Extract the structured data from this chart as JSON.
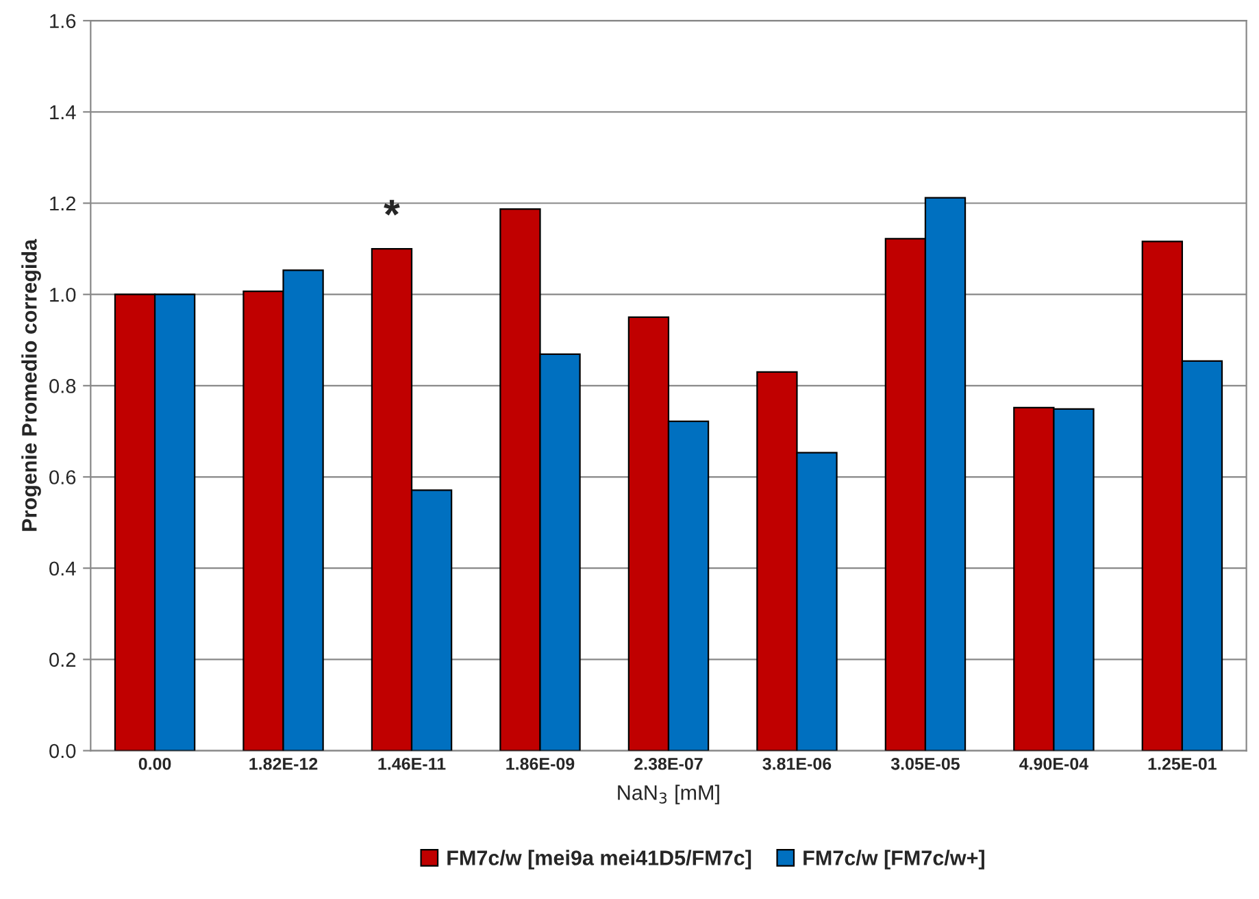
{
  "chart_data": {
    "type": "bar",
    "xlabel": "NaN$_{3}$ [mM]",
    "ylabel": "Progenie Promedio corregida",
    "categories": [
      "0.00",
      "1.82E-12",
      "1.46E-11",
      "1.86E-09",
      "2.38E-07",
      "3.81E-06",
      "3.05E-05",
      "4.90E-04",
      "1.25E-01"
    ],
    "series": [
      {
        "name": "FM7c/w [mei9a mei41D5/FM7c]",
        "color": "#c00000",
        "values": [
          1.0,
          1.007,
          1.1,
          1.187,
          0.95,
          0.83,
          1.122,
          0.752,
          1.116
        ]
      },
      {
        "name": "FM7c/w [FM7c/w+]",
        "color": "#0070c0",
        "values": [
          1.0,
          1.053,
          0.571,
          0.869,
          0.722,
          0.653,
          1.212,
          0.749,
          0.854
        ]
      }
    ],
    "ylim": [
      0,
      1.6
    ],
    "yticks": [
      {
        "value": 0,
        "label": "0.0"
      },
      {
        "value": 0.2,
        "label": "0.2"
      },
      {
        "value": 0.4,
        "label": "0.4"
      },
      {
        "value": 0.6,
        "label": "0.6"
      },
      {
        "value": 0.8,
        "label": "0.8"
      },
      {
        "value": 1.0,
        "label": "1.0"
      },
      {
        "value": 1.2,
        "label": "1.2"
      },
      {
        "value": 1.4,
        "label": "1.4"
      },
      {
        "value": 1.6,
        "label": "1.6"
      }
    ],
    "annotations": [
      {
        "text": "*",
        "x": "1.46E-11",
        "y": 1.1
      }
    ],
    "grid": "y",
    "legend": "bottom"
  }
}
